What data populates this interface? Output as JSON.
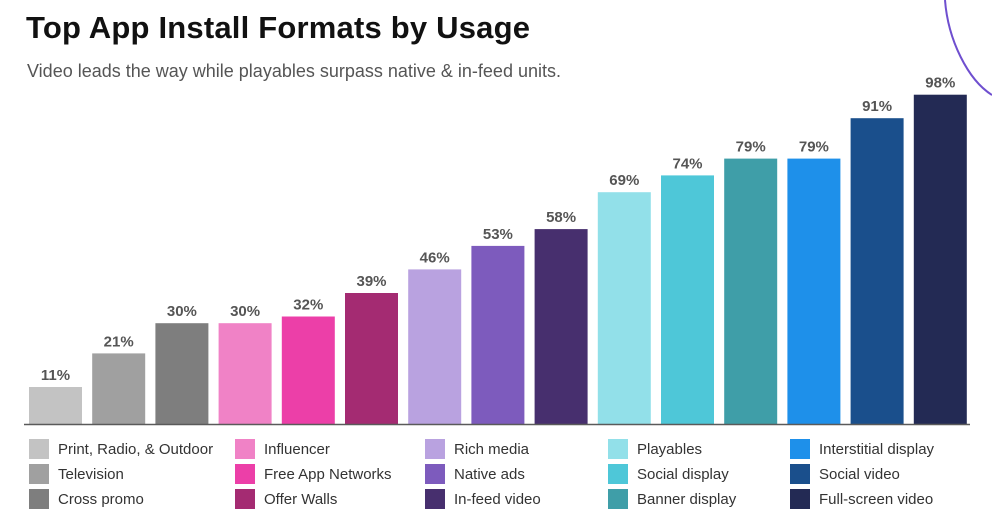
{
  "header": {
    "title": "Top App Install Formats by Usage",
    "subtitle": "Video leads the way while playables surpass native & in-feed units."
  },
  "chart_data": {
    "type": "bar",
    "title": "Top App Install Formats by Usage",
    "subtitle": "Video leads the way while playables surpass native & in-feed units.",
    "xlabel": "",
    "ylabel": "",
    "ylim": [
      0,
      100
    ],
    "value_suffix": "%",
    "grid": false,
    "legend_position": "bottom",
    "categories": [
      "Print, Radio, & Outdoor",
      "Television",
      "Cross promo",
      "Influencer",
      "Free App Networks",
      "Offer Walls",
      "Rich media",
      "Native ads",
      "In-feed video",
      "Playables",
      "Social display",
      "Banner display",
      "Interstitial display",
      "Social video",
      "Full-screen video"
    ],
    "values": [
      11,
      21,
      30,
      30,
      32,
      39,
      46,
      53,
      58,
      69,
      74,
      79,
      79,
      91,
      98
    ],
    "labels": [
      "11%",
      "21%",
      "30%",
      "30%",
      "32%",
      "39%",
      "46%",
      "53%",
      "58%",
      "69%",
      "74%",
      "79%",
      "79%",
      "91%",
      "98%"
    ],
    "colors": [
      "#c3c3c3",
      "#a0a0a0",
      "#7e7e7e",
      "#f082c6",
      "#ec3fa8",
      "#a42b72",
      "#b9a2e0",
      "#7d5bbd",
      "#472f6e",
      "#92e0e9",
      "#4ec7d8",
      "#3f9ea8",
      "#1e90ea",
      "#1a4f8c",
      "#232a54"
    ]
  },
  "colors": {
    "axis": "#5a5a5a",
    "data_label": "#555555",
    "decoration_arc": "#6f4fcf"
  }
}
